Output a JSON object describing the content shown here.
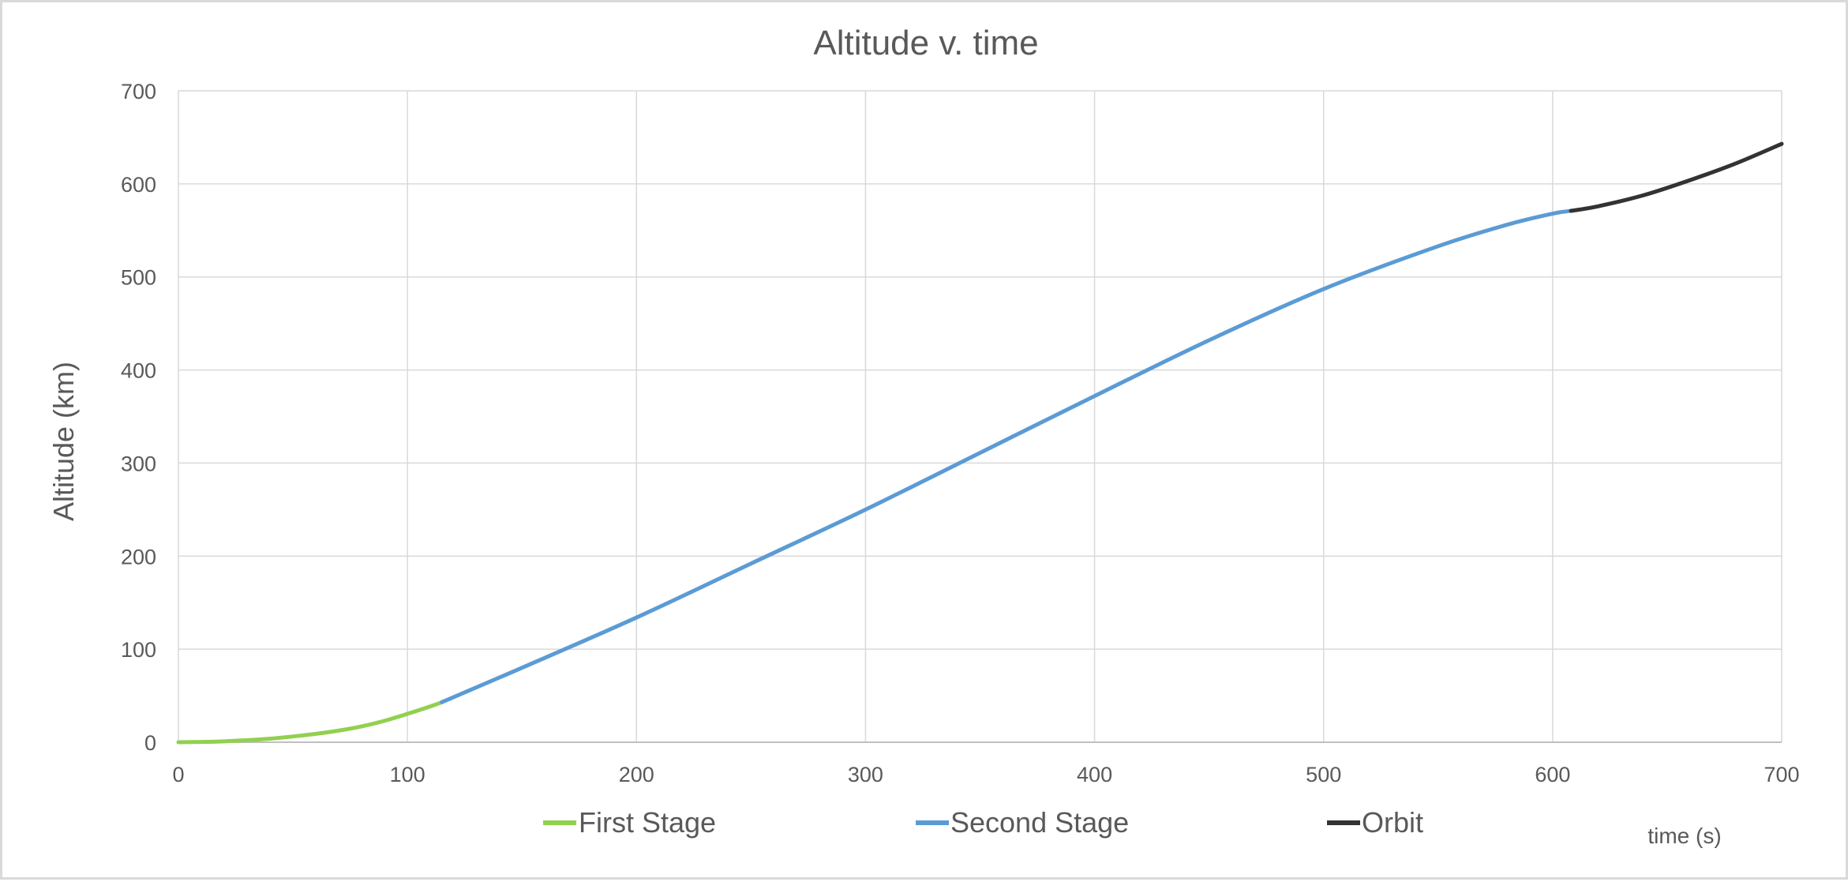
{
  "chart_data": {
    "type": "line",
    "title": "Altitude v. time",
    "xlabel": "time (s)",
    "ylabel": "Altitude (km)",
    "xlim": [
      0,
      700
    ],
    "ylim": [
      0,
      700
    ],
    "x_ticks": [
      0,
      100,
      200,
      300,
      400,
      500,
      600,
      700
    ],
    "y_ticks": [
      0,
      100,
      200,
      300,
      400,
      500,
      600,
      700
    ],
    "grid": true,
    "legend_position": "bottom",
    "series": [
      {
        "name": "First Stage",
        "color": "#92d050",
        "points": [
          [
            0,
            0
          ],
          [
            10,
            0.3
          ],
          [
            20,
            1.0
          ],
          [
            30,
            2.2
          ],
          [
            40,
            3.8
          ],
          [
            50,
            6.2
          ],
          [
            60,
            9.0
          ],
          [
            70,
            12.5
          ],
          [
            80,
            17.0
          ],
          [
            90,
            23.0
          ],
          [
            100,
            30.5
          ],
          [
            110,
            38.5
          ],
          [
            115,
            43.0
          ]
        ]
      },
      {
        "name": "Second Stage",
        "color": "#5b9bd5",
        "points": [
          [
            115,
            43.0
          ],
          [
            150,
            80
          ],
          [
            200,
            134
          ],
          [
            250,
            192
          ],
          [
            300,
            250
          ],
          [
            350,
            311
          ],
          [
            400,
            372
          ],
          [
            450,
            432
          ],
          [
            500,
            487
          ],
          [
            550,
            533
          ],
          [
            580,
            556
          ],
          [
            600,
            568
          ],
          [
            608,
            571
          ]
        ]
      },
      {
        "name": "Orbit",
        "color": "#333333",
        "points": [
          [
            608,
            571
          ],
          [
            620,
            576
          ],
          [
            640,
            588
          ],
          [
            660,
            604
          ],
          [
            680,
            622
          ],
          [
            700,
            643
          ]
        ]
      }
    ]
  }
}
